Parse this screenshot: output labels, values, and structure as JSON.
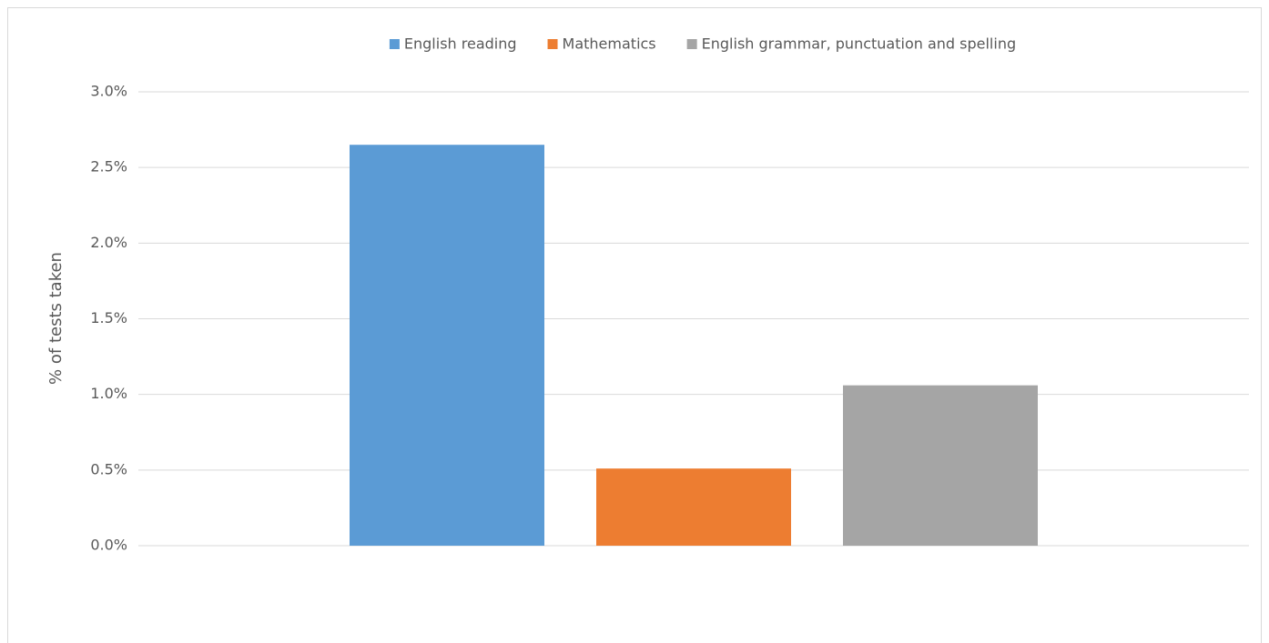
{
  "chart_data": {
    "type": "bar",
    "y_label": "% of tests taken",
    "categories": [
      null
    ],
    "series": [
      {
        "name": "English reading",
        "color": "#5b9bd5",
        "values": [
          2.65
        ]
      },
      {
        "name": "Mathematics",
        "color": "#ed7d31",
        "values": [
          0.51
        ]
      },
      {
        "name": "English grammar, punctuation and spelling",
        "color": "#a5a5a5",
        "values": [
          1.06
        ]
      }
    ],
    "ylim": [
      0,
      3
    ],
    "yticks": [
      {
        "value": 0,
        "label": "0.0%"
      },
      {
        "value": 0.5,
        "label": "0.5%"
      },
      {
        "value": 1,
        "label": "1.0%"
      },
      {
        "value": 1.5,
        "label": "1.5%"
      },
      {
        "value": 2,
        "label": "2.0%"
      },
      {
        "value": 2.5,
        "label": "2.5%"
      },
      {
        "value": 3,
        "label": "3.0%"
      }
    ],
    "grid": true,
    "legend": "top"
  }
}
